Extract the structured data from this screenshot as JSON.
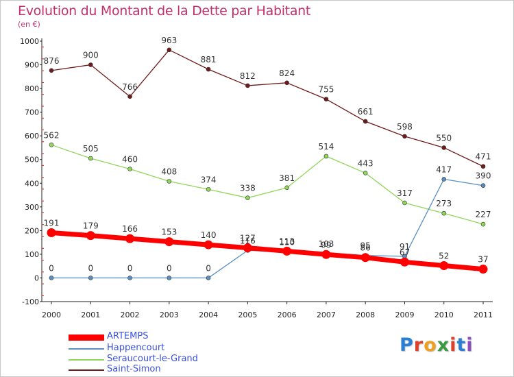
{
  "title": "Evolution du Montant de la Dette par Habitant",
  "subtitle": "(en €)",
  "logo": {
    "text": "Proxiti",
    "letter_colors": [
      "#2a7fd4",
      "#e0402a",
      "#f0a020",
      "#3a9a40",
      "#e0402a",
      "#2a7fd4",
      "#8a4fbf"
    ]
  },
  "chart_data": {
    "type": "line",
    "x": [
      "2000",
      "2001",
      "2002",
      "2003",
      "2004",
      "2005",
      "2006",
      "2007",
      "2008",
      "2009",
      "2010",
      "2011"
    ],
    "ylim": [
      -100,
      1000
    ],
    "yticks": [
      -100,
      0,
      100,
      200,
      300,
      400,
      500,
      600,
      700,
      800,
      900,
      1000
    ],
    "grid": false,
    "legend_position": "bottom-left",
    "series": [
      {
        "name": "Saint-Simon",
        "color": "#6e1a1a",
        "values": [
          876,
          900,
          766,
          963,
          881,
          812,
          824,
          755,
          661,
          598,
          550,
          471
        ],
        "labels": [
          "876",
          "900",
          "766",
          "963",
          "881",
          "812",
          "824",
          "755",
          "661",
          "598",
          "550",
          "471"
        ]
      },
      {
        "name": "Seraucourt-le-Grand",
        "color": "#8fd65a",
        "values": [
          562,
          505,
          460,
          408,
          374,
          338,
          381,
          514,
          443,
          317,
          273,
          227
        ],
        "labels": [
          "562",
          "505",
          "460",
          "408",
          "374",
          "338",
          "381",
          "514",
          "443",
          "317",
          "273",
          "227"
        ]
      },
      {
        "name": "Happencourt",
        "color": "#5a8fc0",
        "values": [
          0,
          0,
          0,
          0,
          0,
          116,
          110,
          103,
          95,
          91,
          417,
          390
        ],
        "labels": [
          "0",
          "0",
          "0",
          "0",
          "0",
          "116",
          "110",
          "103",
          "95",
          "91",
          "417",
          "390"
        ]
      },
      {
        "name": "ARTEMPS",
        "color": "#ff0000",
        "values": [
          191,
          179,
          166,
          153,
          140,
          127,
          113,
          99,
          86,
          67,
          52,
          37
        ],
        "labels": [
          "191",
          "179",
          "166",
          "153",
          "140",
          "127",
          "113",
          "99",
          "86",
          "67",
          "52",
          "37"
        ]
      }
    ],
    "legend": [
      "ARTEMPS",
      "Happencourt",
      "Seraucourt-le-Grand",
      "Saint-Simon"
    ]
  }
}
